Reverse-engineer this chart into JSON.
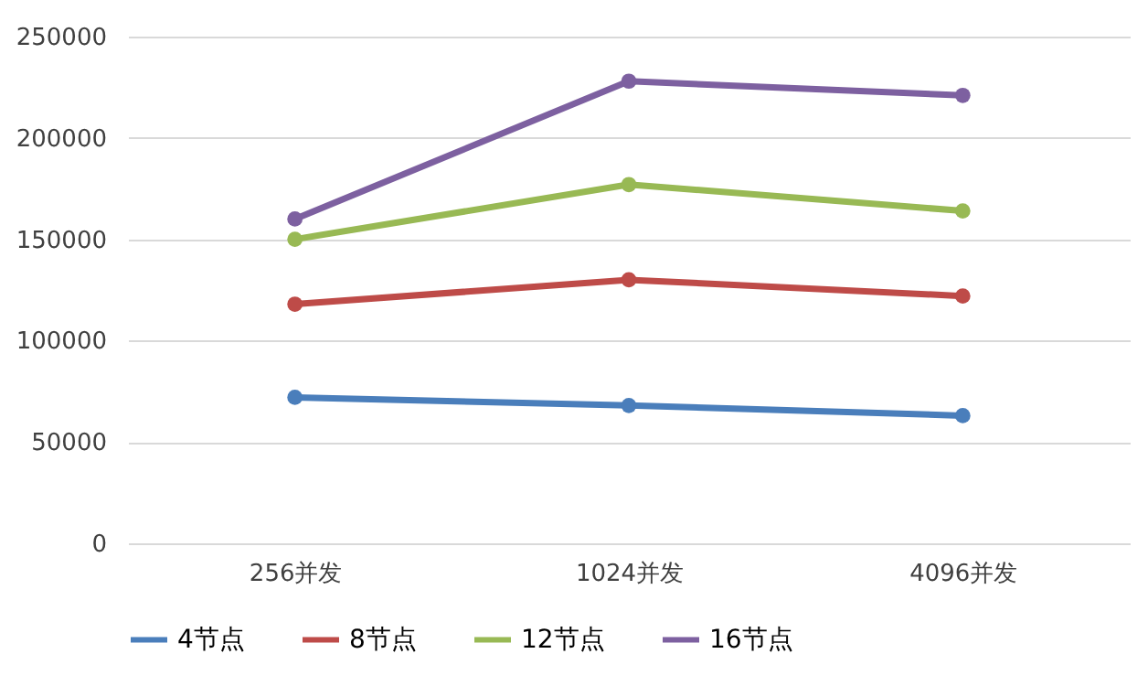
{
  "chart_data": {
    "type": "line",
    "categories": [
      "256并发",
      "1024并发",
      "4096并发"
    ],
    "series": [
      {
        "name": "4节点",
        "color": "#4a7ebb",
        "values": [
          72000,
          68000,
          63000
        ]
      },
      {
        "name": "8节点",
        "color": "#be4b48",
        "values": [
          118000,
          130000,
          122000
        ]
      },
      {
        "name": "12节点",
        "color": "#98b954",
        "values": [
          150000,
          177000,
          164000
        ]
      },
      {
        "name": "16节点",
        "color": "#7d60a0",
        "values": [
          160000,
          228000,
          221000
        ]
      }
    ],
    "ylim": [
      0,
      250000
    ],
    "yticks": [
      0,
      50000,
      100000,
      150000,
      200000,
      250000
    ],
    "grid": "y",
    "legend": "bottom",
    "marker": "circle",
    "line_style": "solid"
  }
}
